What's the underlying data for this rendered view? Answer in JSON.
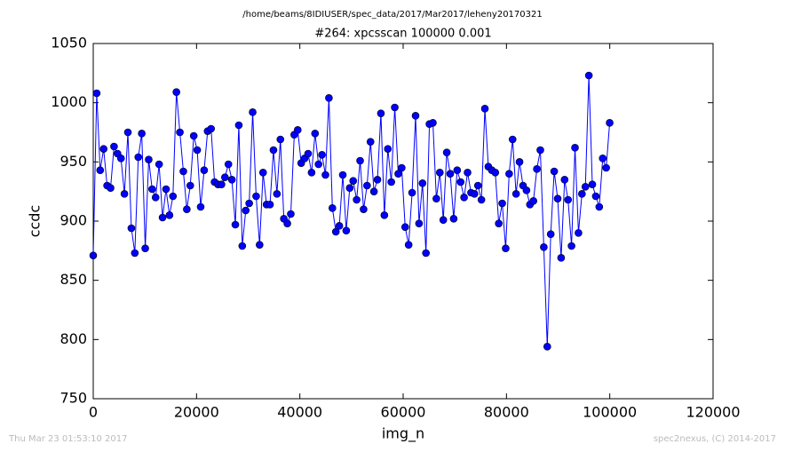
{
  "chart_data": {
    "type": "line",
    "header": "/home/beams/8IDIUSER/spec_data/2017/Mar2017/leheny20170321",
    "title": "#264: xpcsscan 100000 0.001",
    "x_label": "img_n",
    "y_label": "ccdc",
    "footer_left": "Thu Mar 23 01:53:10 2017",
    "footer_right": "spec2nexus, (C) 2014-2017",
    "color": "#0000ff",
    "xlim": [
      0,
      120000
    ],
    "xticks": [
      0,
      20000,
      40000,
      60000,
      80000,
      100000,
      120000
    ],
    "ylim": [
      750,
      1050
    ],
    "yticks": [
      750,
      800,
      850,
      900,
      950,
      1000,
      1050
    ],
    "x": [
      0,
      671,
      1342,
      2013,
      2684,
      3355,
      4026,
      4697,
      5368,
      6039,
      6710,
      7381,
      8052,
      8723,
      9394,
      10065,
      10736,
      11407,
      12078,
      12749,
      13420,
      14091,
      14762,
      15433,
      16104,
      16775,
      17446,
      18117,
      18788,
      19459,
      20130,
      20801,
      21472,
      22143,
      22814,
      23485,
      24156,
      24827,
      25498,
      26169,
      26840,
      27511,
      28182,
      28853,
      29524,
      30195,
      30866,
      31537,
      32208,
      32879,
      33550,
      34221,
      34892,
      35563,
      36234,
      36905,
      37576,
      38247,
      38918,
      39589,
      40260,
      40931,
      41602,
      42273,
      42944,
      43615,
      44286,
      44957,
      45628,
      46299,
      46970,
      47641,
      48312,
      48983,
      49654,
      50325,
      50996,
      51667,
      52338,
      53009,
      53680,
      54351,
      55022,
      55693,
      56364,
      57035,
      57706,
      58377,
      59048,
      59719,
      60390,
      61061,
      61732,
      62403,
      63074,
      63745,
      64416,
      65087,
      65758,
      66429,
      67100,
      67771,
      68442,
      69113,
      69784,
      70455,
      71126,
      71797,
      72468,
      73139,
      73810,
      74481,
      75152,
      75823,
      76494,
      77165,
      77836,
      78507,
      79178,
      79849,
      80520,
      81191,
      81862,
      82533,
      83204,
      83875,
      84546,
      85217,
      85888,
      86559,
      87230,
      87901,
      88572,
      89243,
      89914,
      90585,
      91256,
      91927,
      92598,
      93269,
      93940,
      94611,
      95282,
      95953,
      96624,
      97295,
      97966,
      98637,
      99308,
      99979
    ],
    "values": [
      871,
      1008,
      943,
      961,
      930,
      928,
      963,
      957,
      953,
      923,
      975,
      894,
      873,
      954,
      974,
      877,
      952,
      927,
      920,
      948,
      903,
      927,
      905,
      921,
      1009,
      975,
      942,
      910,
      930,
      972,
      960,
      912,
      943,
      976,
      978,
      933,
      931,
      931,
      937,
      948,
      935,
      897,
      981,
      879,
      909,
      915,
      992,
      921,
      880,
      941,
      914,
      914,
      960,
      923,
      969,
      902,
      898,
      906,
      973,
      977,
      949,
      953,
      957,
      941,
      974,
      948,
      956,
      939,
      1004,
      911,
      891,
      896,
      939,
      892,
      928,
      934,
      918,
      951,
      910,
      930,
      967,
      925,
      935,
      991,
      905,
      961,
      933,
      996,
      940,
      945,
      895,
      880,
      924,
      989,
      898,
      932,
      873,
      982,
      983,
      919,
      941,
      901,
      958,
      940,
      902,
      943,
      933,
      920,
      941,
      924,
      923,
      930,
      918,
      995,
      946,
      943,
      941,
      898,
      915,
      877,
      940,
      969,
      923,
      950,
      930,
      926,
      914,
      917,
      944,
      960,
      878,
      794,
      889,
      942,
      919,
      869,
      935,
      918,
      879,
      962,
      890,
      923,
      929,
      1023,
      931,
      921,
      912,
      953,
      945,
      983
    ]
  }
}
